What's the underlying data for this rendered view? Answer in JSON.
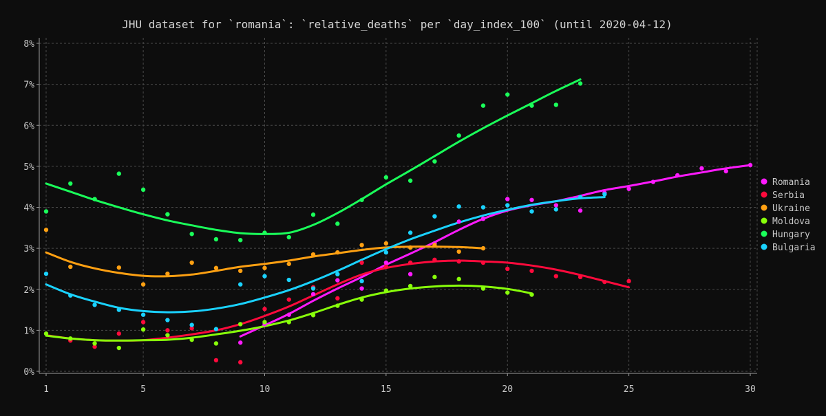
{
  "chart_data": {
    "type": "scatter",
    "title": "JHU dataset for `romania`: `relative_deaths` per `day_index_100` (until 2020-04-12)",
    "xlabel": "",
    "ylabel": "",
    "xlim": [
      1,
      30
    ],
    "ylim": [
      0,
      8
    ],
    "x_ticks": [
      1,
      5,
      10,
      15,
      20,
      25,
      30
    ],
    "y_ticks": [
      0,
      1,
      2,
      3,
      4,
      5,
      6,
      7,
      8
    ],
    "y_tick_suffix": "%",
    "grid": true,
    "legend_position": "right",
    "series": [
      {
        "name": "Romania",
        "color": "#ff1aff",
        "points": [
          [
            9,
            0.7
          ],
          [
            10,
            1.15
          ],
          [
            11,
            1.38
          ],
          [
            12,
            1.88
          ],
          [
            13,
            2.22
          ],
          [
            14,
            2.02
          ],
          [
            15,
            2.65
          ],
          [
            16,
            2.37
          ],
          [
            17,
            3.12
          ],
          [
            18,
            3.65
          ],
          [
            19,
            3.72
          ],
          [
            20,
            4.2
          ],
          [
            21,
            4.18
          ],
          [
            22,
            4.05
          ],
          [
            23,
            3.92
          ],
          [
            24,
            4.35
          ],
          [
            25,
            4.45
          ],
          [
            26,
            4.62
          ],
          [
            27,
            4.78
          ],
          [
            28,
            4.95
          ],
          [
            29,
            4.88
          ],
          [
            30,
            5.03
          ]
        ],
        "trend": [
          [
            9,
            0.85
          ],
          [
            10,
            1.12
          ],
          [
            11,
            1.4
          ],
          [
            12,
            1.72
          ],
          [
            13,
            2.02
          ],
          [
            14,
            2.3
          ],
          [
            15,
            2.6
          ],
          [
            16,
            2.87
          ],
          [
            17,
            3.15
          ],
          [
            18,
            3.45
          ],
          [
            19,
            3.72
          ],
          [
            20,
            3.92
          ],
          [
            21,
            4.05
          ],
          [
            22,
            4.15
          ],
          [
            23,
            4.28
          ],
          [
            24,
            4.42
          ],
          [
            25,
            4.52
          ],
          [
            26,
            4.63
          ],
          [
            27,
            4.75
          ],
          [
            28,
            4.85
          ],
          [
            29,
            4.95
          ],
          [
            30,
            5.03
          ]
        ]
      },
      {
        "name": "Serbia",
        "color": "#ff0a3c",
        "points": [
          [
            2,
            0.75
          ],
          [
            3,
            0.6
          ],
          [
            4,
            0.92
          ],
          [
            5,
            1.2
          ],
          [
            6,
            1.0
          ],
          [
            7,
            1.05
          ],
          [
            8,
            0.27
          ],
          [
            9,
            0.22
          ],
          [
            10,
            1.52
          ],
          [
            11,
            1.75
          ],
          [
            12,
            2.05
          ],
          [
            13,
            1.78
          ],
          [
            14,
            2.65
          ],
          [
            15,
            2.55
          ],
          [
            16,
            2.65
          ],
          [
            17,
            2.72
          ],
          [
            18,
            2.68
          ],
          [
            19,
            2.65
          ],
          [
            20,
            2.5
          ],
          [
            21,
            2.45
          ],
          [
            22,
            2.32
          ],
          [
            23,
            2.3
          ],
          [
            24,
            2.18
          ],
          [
            25,
            2.2
          ]
        ],
        "trend": [
          [
            1,
            0.88
          ],
          [
            2,
            0.8
          ],
          [
            3,
            0.76
          ],
          [
            4,
            0.75
          ],
          [
            5,
            0.76
          ],
          [
            6,
            0.82
          ],
          [
            7,
            0.9
          ],
          [
            8,
            1.0
          ],
          [
            9,
            1.15
          ],
          [
            10,
            1.35
          ],
          [
            11,
            1.58
          ],
          [
            12,
            1.85
          ],
          [
            13,
            2.12
          ],
          [
            14,
            2.36
          ],
          [
            15,
            2.52
          ],
          [
            16,
            2.62
          ],
          [
            17,
            2.68
          ],
          [
            18,
            2.7
          ],
          [
            19,
            2.68
          ],
          [
            20,
            2.65
          ],
          [
            21,
            2.58
          ],
          [
            22,
            2.48
          ],
          [
            23,
            2.35
          ],
          [
            24,
            2.2
          ],
          [
            25,
            2.05
          ]
        ]
      },
      {
        "name": "Ukraine",
        "color": "#ffa012",
        "points": [
          [
            1,
            3.45
          ],
          [
            2,
            2.55
          ],
          [
            4,
            2.53
          ],
          [
            5,
            2.12
          ],
          [
            6,
            2.38
          ],
          [
            7,
            2.65
          ],
          [
            8,
            2.52
          ],
          [
            9,
            2.45
          ],
          [
            10,
            2.52
          ],
          [
            11,
            2.62
          ],
          [
            12,
            2.85
          ],
          [
            13,
            2.9
          ],
          [
            14,
            3.08
          ],
          [
            15,
            3.12
          ],
          [
            16,
            3.02
          ],
          [
            17,
            3.08
          ],
          [
            18,
            2.92
          ],
          [
            19,
            3.0
          ]
        ],
        "trend": [
          [
            1,
            2.9
          ],
          [
            2,
            2.67
          ],
          [
            3,
            2.51
          ],
          [
            4,
            2.4
          ],
          [
            5,
            2.33
          ],
          [
            6,
            2.32
          ],
          [
            7,
            2.36
          ],
          [
            8,
            2.45
          ],
          [
            9,
            2.55
          ],
          [
            10,
            2.62
          ],
          [
            11,
            2.7
          ],
          [
            12,
            2.8
          ],
          [
            13,
            2.88
          ],
          [
            14,
            2.96
          ],
          [
            15,
            3.02
          ],
          [
            16,
            3.04
          ],
          [
            17,
            3.04
          ],
          [
            18,
            3.03
          ],
          [
            19,
            3.0
          ]
        ]
      },
      {
        "name": "Moldova",
        "color": "#88ff0a",
        "points": [
          [
            1,
            0.92
          ],
          [
            2,
            0.8
          ],
          [
            3,
            0.68
          ],
          [
            4,
            0.57
          ],
          [
            5,
            1.02
          ],
          [
            6,
            0.88
          ],
          [
            7,
            0.77
          ],
          [
            8,
            0.68
          ],
          [
            9,
            1.15
          ],
          [
            10,
            1.2
          ],
          [
            11,
            1.2
          ],
          [
            12,
            1.37
          ],
          [
            13,
            1.6
          ],
          [
            14,
            1.75
          ],
          [
            15,
            1.97
          ],
          [
            16,
            2.08
          ],
          [
            17,
            2.3
          ],
          [
            18,
            2.25
          ],
          [
            19,
            2.02
          ],
          [
            20,
            1.92
          ],
          [
            21,
            1.87
          ]
        ],
        "trend": [
          [
            1,
            0.87
          ],
          [
            2,
            0.8
          ],
          [
            3,
            0.76
          ],
          [
            4,
            0.75
          ],
          [
            5,
            0.76
          ],
          [
            6,
            0.77
          ],
          [
            7,
            0.82
          ],
          [
            8,
            0.9
          ],
          [
            9,
            0.99
          ],
          [
            10,
            1.1
          ],
          [
            11,
            1.24
          ],
          [
            12,
            1.42
          ],
          [
            13,
            1.62
          ],
          [
            14,
            1.8
          ],
          [
            15,
            1.93
          ],
          [
            16,
            2.02
          ],
          [
            17,
            2.07
          ],
          [
            18,
            2.09
          ],
          [
            19,
            2.07
          ],
          [
            20,
            2.01
          ],
          [
            21,
            1.9
          ]
        ]
      },
      {
        "name": "Hungary",
        "color": "#1aff5a",
        "points": [
          [
            1,
            3.9
          ],
          [
            2,
            4.58
          ],
          [
            3,
            4.2
          ],
          [
            4,
            4.82
          ],
          [
            5,
            4.43
          ],
          [
            6,
            3.83
          ],
          [
            7,
            3.35
          ],
          [
            8,
            3.22
          ],
          [
            9,
            3.2
          ],
          [
            10,
            3.38
          ],
          [
            11,
            3.27
          ],
          [
            12,
            3.82
          ],
          [
            13,
            3.6
          ],
          [
            14,
            4.18
          ],
          [
            15,
            4.73
          ],
          [
            16,
            4.65
          ],
          [
            17,
            5.12
          ],
          [
            18,
            5.75
          ],
          [
            19,
            6.48
          ],
          [
            20,
            6.75
          ],
          [
            21,
            6.48
          ],
          [
            22,
            6.5
          ],
          [
            23,
            7.02
          ]
        ],
        "trend": [
          [
            1,
            4.58
          ],
          [
            2,
            4.38
          ],
          [
            3,
            4.18
          ],
          [
            4,
            4.0
          ],
          [
            5,
            3.83
          ],
          [
            6,
            3.68
          ],
          [
            7,
            3.56
          ],
          [
            8,
            3.45
          ],
          [
            9,
            3.37
          ],
          [
            10,
            3.35
          ],
          [
            11,
            3.38
          ],
          [
            12,
            3.57
          ],
          [
            13,
            3.86
          ],
          [
            14,
            4.2
          ],
          [
            15,
            4.56
          ],
          [
            16,
            4.9
          ],
          [
            17,
            5.25
          ],
          [
            18,
            5.6
          ],
          [
            19,
            5.93
          ],
          [
            20,
            6.24
          ],
          [
            21,
            6.54
          ],
          [
            22,
            6.84
          ],
          [
            23,
            7.12
          ]
        ]
      },
      {
        "name": "Bulgaria",
        "color": "#1ad2ff",
        "points": [
          [
            1,
            2.38
          ],
          [
            2,
            1.85
          ],
          [
            3,
            1.62
          ],
          [
            4,
            1.5
          ],
          [
            5,
            1.38
          ],
          [
            6,
            1.25
          ],
          [
            7,
            1.13
          ],
          [
            8,
            1.03
          ],
          [
            9,
            2.12
          ],
          [
            10,
            2.32
          ],
          [
            11,
            2.23
          ],
          [
            12,
            2.02
          ],
          [
            13,
            2.37
          ],
          [
            14,
            2.2
          ],
          [
            15,
            2.9
          ],
          [
            16,
            3.38
          ],
          [
            17,
            3.78
          ],
          [
            18,
            4.02
          ],
          [
            19,
            4.0
          ],
          [
            20,
            4.05
          ],
          [
            21,
            3.9
          ],
          [
            22,
            3.95
          ],
          [
            23,
            4.25
          ],
          [
            24,
            4.32
          ]
        ],
        "trend": [
          [
            1,
            2.12
          ],
          [
            2,
            1.88
          ],
          [
            3,
            1.7
          ],
          [
            4,
            1.55
          ],
          [
            5,
            1.47
          ],
          [
            6,
            1.44
          ],
          [
            7,
            1.46
          ],
          [
            8,
            1.53
          ],
          [
            9,
            1.64
          ],
          [
            10,
            1.8
          ],
          [
            11,
            1.98
          ],
          [
            12,
            2.2
          ],
          [
            13,
            2.45
          ],
          [
            14,
            2.72
          ],
          [
            15,
            2.98
          ],
          [
            16,
            3.22
          ],
          [
            17,
            3.43
          ],
          [
            18,
            3.63
          ],
          [
            19,
            3.8
          ],
          [
            20,
            3.94
          ],
          [
            21,
            4.06
          ],
          [
            22,
            4.15
          ],
          [
            23,
            4.22
          ],
          [
            24,
            4.25
          ]
        ]
      }
    ]
  }
}
